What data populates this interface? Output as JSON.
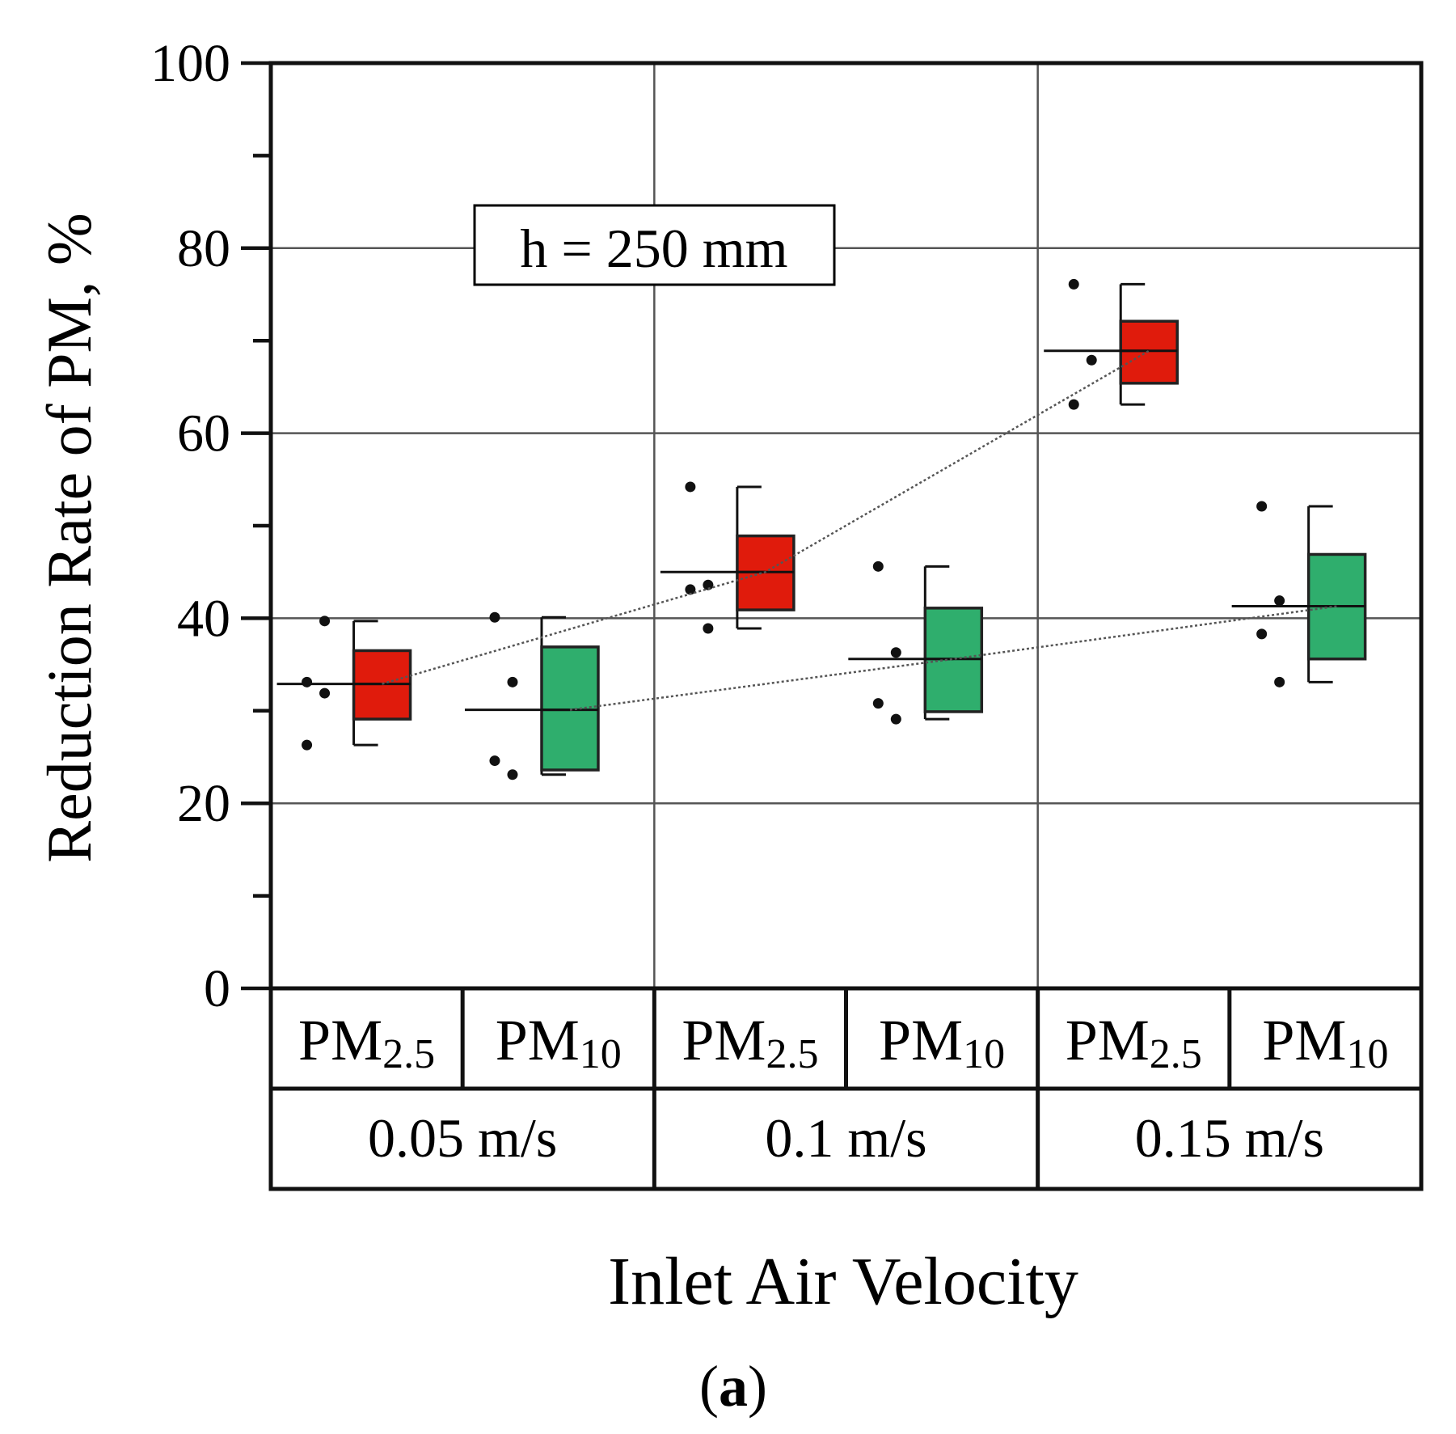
{
  "chart_data": {
    "type": "box",
    "title": "",
    "annotation": "h = 250 mm",
    "ylabel": "Reduction Rate of PM, %",
    "xlabel": "Inlet Air Velocity",
    "panel_label": "(a)",
    "panel_letter": "a",
    "ylim": [
      0,
      100
    ],
    "yticks": [
      "0",
      "20",
      "40",
      "60",
      "80",
      "100"
    ],
    "grid": true,
    "groups": [
      {
        "velocity": "0.05 m/s",
        "boxes": [
          {
            "pollutant": "PM",
            "sub": "2.5",
            "color": "#e01b0c",
            "min": 26.3,
            "q1": 29.1,
            "median": 32.9,
            "q3": 36.5,
            "max": 39.7,
            "mean": 32.9,
            "points": [
              33.1,
              31.9,
              26.3,
              39.7
            ]
          },
          {
            "pollutant": "PM",
            "sub": "10",
            "color": "#2fae6d",
            "min": 23.1,
            "q1": 23.6,
            "median": 30.1,
            "q3": 36.9,
            "max": 40.1,
            "mean": 30.1,
            "points": [
              40.1,
              33.1,
              24.6,
              23.1
            ]
          }
        ]
      },
      {
        "velocity": "0.1 m/s",
        "boxes": [
          {
            "pollutant": "PM",
            "sub": "2.5",
            "color": "#e01b0c",
            "min": 38.9,
            "q1": 40.9,
            "median": 45.0,
            "q3": 48.9,
            "max": 54.2,
            "mean": 45.0,
            "points": [
              54.2,
              43.6,
              43.1,
              38.9
            ]
          },
          {
            "pollutant": "PM",
            "sub": "10",
            "color": "#2fae6d",
            "min": 29.1,
            "q1": 29.9,
            "median": 35.6,
            "q3": 41.1,
            "max": 45.6,
            "mean": 35.6,
            "points": [
              45.6,
              36.3,
              30.8,
              29.1
            ]
          }
        ]
      },
      {
        "velocity": "0.15 m/s",
        "boxes": [
          {
            "pollutant": "PM",
            "sub": "2.5",
            "color": "#e01b0c",
            "min": 63.1,
            "q1": 65.4,
            "median": 68.9,
            "q3": 72.1,
            "max": 76.1,
            "mean": 68.9,
            "points": [
              76.1,
              67.9,
              63.1
            ]
          },
          {
            "pollutant": "PM",
            "sub": "10",
            "color": "#2fae6d",
            "min": 33.1,
            "q1": 35.6,
            "median": 41.3,
            "q3": 46.9,
            "max": 52.1,
            "mean": 41.3,
            "points": [
              52.1,
              41.9,
              38.3,
              33.1
            ]
          }
        ]
      }
    ]
  }
}
